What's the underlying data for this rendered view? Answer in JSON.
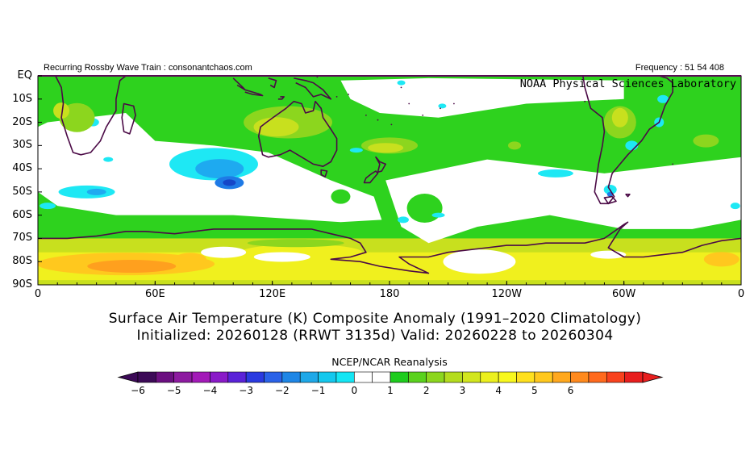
{
  "header": {
    "left": "Recurring Rossby Wave Train : consonantchaos.com",
    "right": "Frequency : 51 54 408",
    "lab": "NOAA Physical Sciences Laboratory"
  },
  "axes": {
    "y_labels": [
      "EQ",
      "10S",
      "20S",
      "30S",
      "40S",
      "50S",
      "60S",
      "70S",
      "80S",
      "90S"
    ],
    "x_labels": [
      "0",
      "60E",
      "120E",
      "180",
      "120W",
      "60W",
      "0"
    ]
  },
  "titles": {
    "line1": "Surface Air Temperature (K) Composite Anomaly (1991–2020 Climatology)",
    "line2": "Initialized: 20260128 (RRWT 3135d) Valid: 20260228 to 20260304"
  },
  "colorbar": {
    "title": "NCEP/NCAR Reanalysis",
    "labels": [
      "−6",
      "−5",
      "−4",
      "−3",
      "−2",
      "−1",
      "0",
      "1",
      "2",
      "3",
      "4",
      "5",
      "6"
    ],
    "colors": [
      "#3c0a57",
      "#6b0f80",
      "#8d1aa0",
      "#a31ab8",
      "#8a1ac8",
      "#5a22d8",
      "#2a3ae0",
      "#2a62e8",
      "#1e86e6",
      "#1ea8e8",
      "#14c8ee",
      "#14e6f4",
      "#ffffff",
      "#ffffff",
      "#1ecc1e",
      "#5ad21e",
      "#8cd61e",
      "#b4dc1e",
      "#d2e61e",
      "#ecf01e",
      "#f8f81e",
      "#ffe01e",
      "#ffc81e",
      "#ffa81e",
      "#ff8a1e",
      "#ff6a1e",
      "#f8421e",
      "#e81e1e"
    ],
    "under_color": "#3c0a57",
    "over_color": "#e81e1e"
  },
  "palette": {
    "white": "#ffffff",
    "green": "#2ed21e",
    "lightgreen": "#8cd61e",
    "yellowgreen": "#c8e01e",
    "yellow": "#f0f01e",
    "orange": "#ffc81e",
    "darkorange": "#ffa01e",
    "cyan": "#1ee8f4",
    "blue": "#1eaaf0",
    "darkblue": "#1e7ae6",
    "deepblue": "#1446c8",
    "coast": "#4b0a46"
  }
}
